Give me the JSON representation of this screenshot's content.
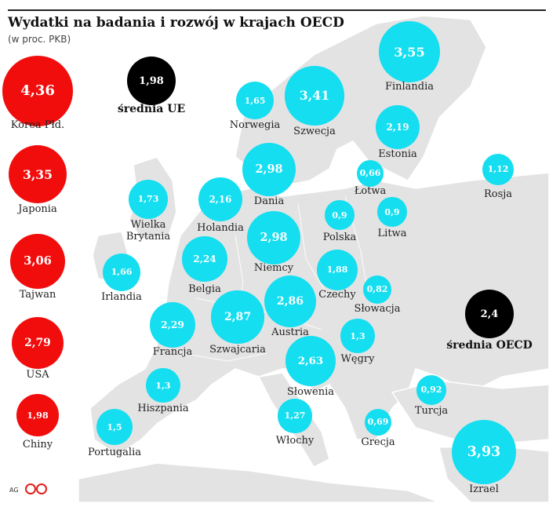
{
  "title": "Wydatki na badania i rozwój w krajach OECD",
  "subtitle": "(w proc. PKB)",
  "footer_credit": "AG",
  "colors": {
    "country": "#14def0",
    "asia": "#f20d0d",
    "average": "#000000",
    "land": "#e3e3e3"
  },
  "chart_data": {
    "type": "bubble-map",
    "unit": "% PKB",
    "asia": [
      {
        "name": "Korea Płd.",
        "value": "4,36"
      },
      {
        "name": "Japonia",
        "value": "3,35"
      },
      {
        "name": "Tajwan",
        "value": "3,06"
      },
      {
        "name": "USA",
        "value": "2,79"
      },
      {
        "name": "Chiny",
        "value": "1,98"
      }
    ],
    "averages": [
      {
        "name": "średnia UE",
        "value": "1,98"
      },
      {
        "name": "średnia OECD",
        "value": "2,4"
      }
    ],
    "countries": [
      {
        "name": "Finlandia",
        "value": "3,55"
      },
      {
        "name": "Szwecja",
        "value": "3,41"
      },
      {
        "name": "Norwegia",
        "value": "1,65"
      },
      {
        "name": "Estonia",
        "value": "2,19"
      },
      {
        "name": "Dania",
        "value": "2,98"
      },
      {
        "name": "Łotwa",
        "value": "0,66"
      },
      {
        "name": "Rosja",
        "value": "1,12"
      },
      {
        "name": "Wielka Brytania",
        "value": "1,73"
      },
      {
        "name": "Holandia",
        "value": "2,16"
      },
      {
        "name": "Polska",
        "value": "0,9"
      },
      {
        "name": "Litwa",
        "value": "0,9"
      },
      {
        "name": "Niemcy",
        "value": "2,98"
      },
      {
        "name": "Belgia",
        "value": "2,24"
      },
      {
        "name": "Irlandia",
        "value": "1,66"
      },
      {
        "name": "Czechy",
        "value": "1,88"
      },
      {
        "name": "Słowacja",
        "value": "0,82"
      },
      {
        "name": "Francja",
        "value": "2,29"
      },
      {
        "name": "Szwajcaria",
        "value": "2,87"
      },
      {
        "name": "Austria",
        "value": "2,86"
      },
      {
        "name": "Węgry",
        "value": "1,3"
      },
      {
        "name": "Słowenia",
        "value": "2,63"
      },
      {
        "name": "Hiszpania",
        "value": "1,3"
      },
      {
        "name": "Portugalia",
        "value": "1,5"
      },
      {
        "name": "Włochy",
        "value": "1,27"
      },
      {
        "name": "Grecja",
        "value": "0,69"
      },
      {
        "name": "Turcja",
        "value": "0,92"
      },
      {
        "name": "Izrael",
        "value": "3,93"
      }
    ]
  }
}
